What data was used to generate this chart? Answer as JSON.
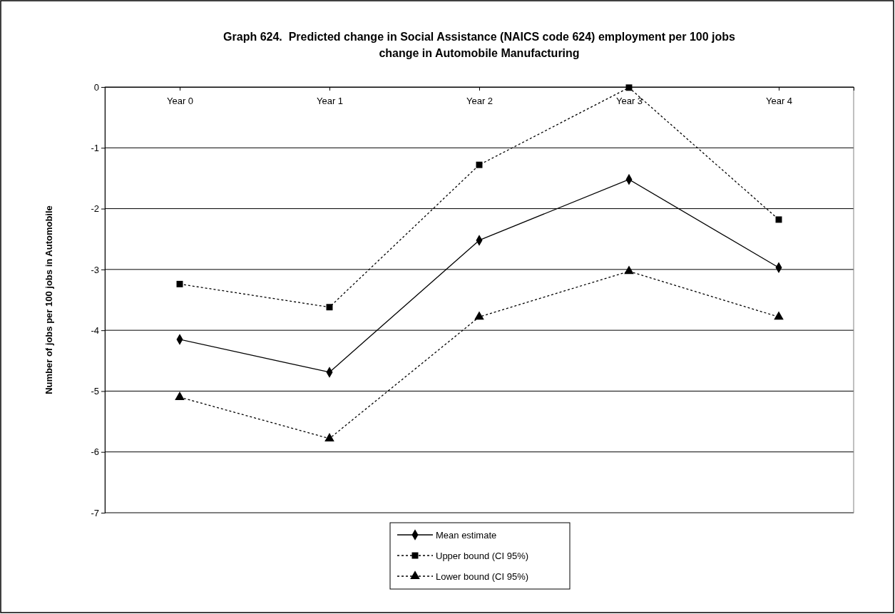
{
  "chart_data": {
    "type": "line",
    "title": "Graph 624.  Predicted change in Social Assistance (NAICS code 624) employment per 100 jobs change in Automobile Manufacturing",
    "ylabel": "Number of jobs per 100 jobs in Automobile",
    "categories": [
      "Year 0",
      "Year 1",
      "Year 2",
      "Year 3",
      "Year 4"
    ],
    "series": [
      {
        "name": "Mean estimate",
        "color": "#000000",
        "marker": "diamond",
        "line_style": "solid",
        "values": [
          -4.15,
          -4.69,
          -2.52,
          -1.52,
          -2.97
        ]
      },
      {
        "name": "Upper bound (CI 95%)",
        "color": "#000000",
        "marker": "square",
        "line_style": "dotted",
        "values": [
          -3.24,
          -3.62,
          -1.28,
          -0.01,
          -2.18
        ]
      },
      {
        "name": "Lower bound (CI 95%)",
        "color": "#000000",
        "marker": "triangle",
        "line_style": "dotted",
        "values": [
          -5.1,
          -5.78,
          -3.78,
          -3.03,
          -3.78
        ]
      }
    ],
    "ylim": [
      -7,
      0
    ],
    "yticks": [
      -7,
      -6,
      -5,
      -4,
      -3,
      -2,
      -1,
      0
    ],
    "grid": "y",
    "legend": "bottom"
  }
}
